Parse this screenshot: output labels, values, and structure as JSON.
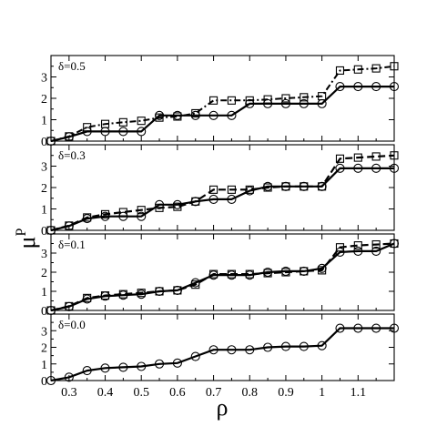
{
  "chart_data": {
    "type": "line",
    "xlabel": "ρ",
    "ylabel": "μ",
    "ylabel_sup": "P",
    "xlim": [
      0.25,
      1.2
    ],
    "ylim": [
      0,
      4
    ],
    "xticks": [
      "0.3",
      "0.4",
      "0.5",
      "0.6",
      "0.7",
      "0.8",
      "0.9",
      "1",
      "1.1"
    ],
    "yticks": [
      "0",
      "1",
      "2",
      "3"
    ],
    "panels": [
      {
        "label": "δ=0.5",
        "series": [
          {
            "marker": "square",
            "style": "dashdot",
            "x": [
              0.25,
              0.3,
              0.35,
              0.4,
              0.45,
              0.5,
              0.55,
              0.6,
              0.65,
              0.7,
              0.75,
              0.8,
              0.85,
              0.9,
              0.95,
              1.0,
              1.05,
              1.1,
              1.15,
              1.2
            ],
            "y": [
              0.0,
              0.22,
              0.65,
              0.8,
              0.88,
              0.95,
              1.1,
              1.15,
              1.3,
              1.9,
              1.9,
              1.9,
              1.95,
              2.0,
              2.05,
              2.1,
              3.3,
              3.35,
              3.4,
              3.5
            ]
          },
          {
            "marker": "circle",
            "style": "solid",
            "x": [
              0.25,
              0.3,
              0.35,
              0.4,
              0.45,
              0.5,
              0.55,
              0.6,
              0.65,
              0.7,
              0.75,
              0.8,
              0.85,
              0.9,
              0.95,
              1.0,
              1.05,
              1.1,
              1.15,
              1.2
            ],
            "y": [
              0.0,
              0.2,
              0.45,
              0.45,
              0.45,
              0.45,
              1.2,
              1.2,
              1.2,
              1.2,
              1.2,
              1.75,
              1.75,
              1.75,
              1.75,
              1.75,
              2.55,
              2.55,
              2.55,
              2.55
            ]
          }
        ]
      },
      {
        "label": "δ=0.3",
        "series": [
          {
            "marker": "square",
            "style": "dashed",
            "x": [
              0.25,
              0.3,
              0.35,
              0.4,
              0.45,
              0.5,
              0.55,
              0.6,
              0.65,
              0.7,
              0.75,
              0.8,
              0.85,
              0.9,
              0.95,
              1.0,
              1.05,
              1.1,
              1.15,
              1.2
            ],
            "y": [
              0.0,
              0.22,
              0.6,
              0.75,
              0.85,
              0.95,
              1.05,
              1.1,
              1.35,
              1.9,
              1.9,
              1.9,
              2.0,
              2.05,
              2.05,
              2.05,
              3.35,
              3.4,
              3.45,
              3.5
            ]
          },
          {
            "marker": "circle",
            "style": "solid",
            "x": [
              0.25,
              0.3,
              0.35,
              0.4,
              0.45,
              0.5,
              0.55,
              0.6,
              0.65,
              0.7,
              0.75,
              0.8,
              0.85,
              0.9,
              0.95,
              1.0,
              1.05,
              1.1,
              1.15,
              1.2
            ],
            "y": [
              0.0,
              0.2,
              0.55,
              0.65,
              0.65,
              0.65,
              1.2,
              1.2,
              1.35,
              1.45,
              1.45,
              1.85,
              2.05,
              2.05,
              2.05,
              2.05,
              2.9,
              2.9,
              2.9,
              2.9
            ]
          }
        ]
      },
      {
        "label": "δ=0.1",
        "series": [
          {
            "marker": "square",
            "style": "dashed",
            "x": [
              0.25,
              0.3,
              0.35,
              0.4,
              0.45,
              0.5,
              0.55,
              0.6,
              0.65,
              0.7,
              0.75,
              0.8,
              0.85,
              0.9,
              0.95,
              1.0,
              1.05,
              1.1,
              1.15,
              1.2
            ],
            "y": [
              0.0,
              0.22,
              0.65,
              0.78,
              0.85,
              0.92,
              1.0,
              1.05,
              1.35,
              1.9,
              1.9,
              1.9,
              1.95,
              2.0,
              2.05,
              2.1,
              3.3,
              3.4,
              3.45,
              3.5
            ]
          },
          {
            "marker": "circle",
            "style": "solid",
            "x": [
              0.25,
              0.3,
              0.35,
              0.4,
              0.45,
              0.5,
              0.55,
              0.6,
              0.65,
              0.7,
              0.75,
              0.8,
              0.85,
              0.9,
              0.95,
              1.0,
              1.05,
              1.1,
              1.15,
              1.2
            ],
            "y": [
              0.0,
              0.2,
              0.6,
              0.75,
              0.8,
              0.85,
              1.0,
              1.05,
              1.45,
              1.85,
              1.85,
              1.85,
              2.0,
              2.05,
              2.05,
              2.2,
              3.05,
              3.1,
              3.1,
              3.5
            ]
          }
        ]
      },
      {
        "label": "δ=0.0",
        "series": [
          {
            "marker": "circle",
            "style": "solid",
            "x": [
              0.25,
              0.3,
              0.35,
              0.4,
              0.45,
              0.5,
              0.55,
              0.6,
              0.65,
              0.7,
              0.75,
              0.8,
              0.85,
              0.9,
              0.95,
              1.0,
              1.05,
              1.1,
              1.15,
              1.2
            ],
            "y": [
              0.0,
              0.2,
              0.6,
              0.75,
              0.8,
              0.85,
              1.0,
              1.05,
              1.45,
              1.85,
              1.85,
              1.85,
              2.0,
              2.05,
              2.05,
              2.1,
              3.15,
              3.15,
              3.15,
              3.15
            ]
          }
        ]
      }
    ]
  }
}
